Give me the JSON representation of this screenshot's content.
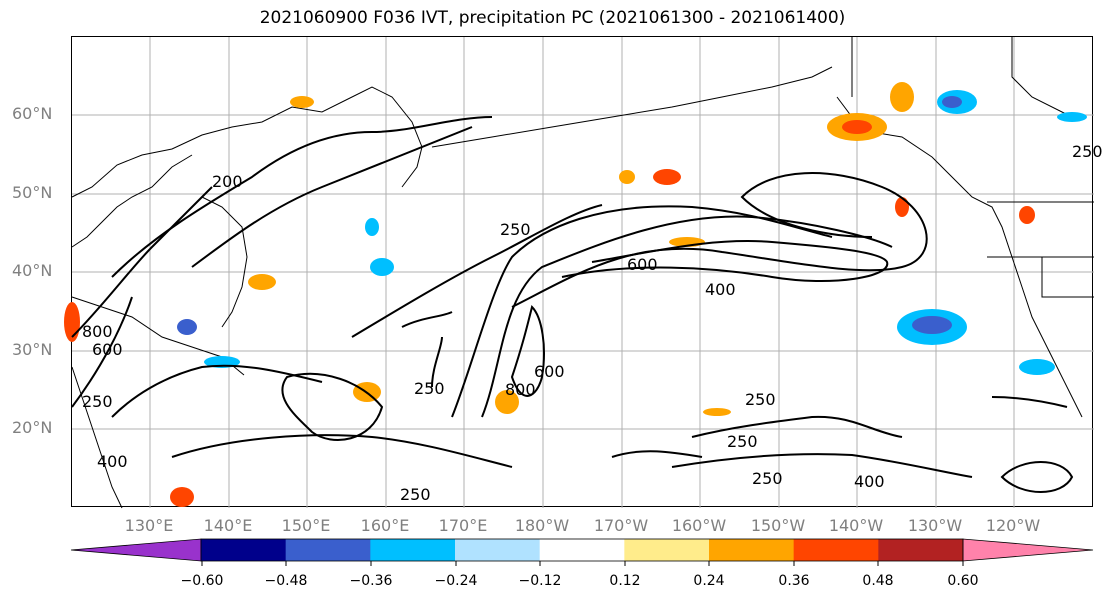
{
  "title": "2021060900 F036 IVT, precipitation PC (2021061300 - 2021061400)",
  "lat_labels": [
    "60°N",
    "50°N",
    "40°N",
    "30°N",
    "20°N"
  ],
  "lon_labels": [
    "130°E",
    "140°E",
    "150°E",
    "160°E",
    "170°E",
    "180°W",
    "170°W",
    "160°W",
    "150°W",
    "140°W",
    "130°W",
    "120°W"
  ],
  "contour_labels": [
    "250",
    "250",
    "250",
    "250",
    "250",
    "250",
    "250",
    "250",
    "400",
    "400",
    "400",
    "600",
    "600",
    "600",
    "800",
    "800",
    "200"
  ],
  "colorbar": {
    "ticks": [
      "−0.60",
      "−0.48",
      "−0.36",
      "−0.24",
      "−0.12",
      "0.12",
      "0.24",
      "0.36",
      "0.48",
      "0.60"
    ],
    "colors": [
      "#9932cc",
      "#00008b",
      "#3a5fcd",
      "#00bfff",
      "#b0e2ff",
      "#ffffff",
      "#ffec8b",
      "#ffa500",
      "#ff4500",
      "#b22222",
      "#ff82ab"
    ]
  }
}
